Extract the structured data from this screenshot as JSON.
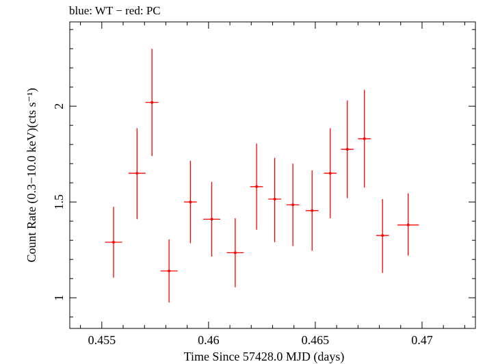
{
  "chart_data": {
    "type": "scatter",
    "title": "blue: WT − red: PC",
    "xlabel": "Time Since 57428.0 MJD (days)",
    "ylabel": "Count Rate (0.3−10.0 keV)(cts s⁻¹)",
    "xlim": [
      0.4535,
      0.4725
    ],
    "ylim": [
      0.84,
      2.44
    ],
    "x_ticks": [
      0.455,
      0.46,
      0.465,
      0.47
    ],
    "x_tick_labels": [
      "0.455",
      "0.46",
      "0.465",
      "0.47"
    ],
    "y_ticks": [
      1,
      1.5,
      2
    ],
    "y_tick_labels": [
      "1",
      "1.5",
      "2"
    ],
    "grid": false,
    "series": [
      {
        "name": "PC",
        "color": "#ff0000",
        "points": [
          {
            "x": 0.45555,
            "y": 1.29,
            "xerr": 0.0004,
            "ylo": 1.105,
            "yhi": 1.475
          },
          {
            "x": 0.45665,
            "y": 1.65,
            "xerr": 0.0004,
            "ylo": 1.41,
            "yhi": 1.885
          },
          {
            "x": 0.45735,
            "y": 2.02,
            "xerr": 0.0003,
            "ylo": 1.74,
            "yhi": 2.3
          },
          {
            "x": 0.45815,
            "y": 1.14,
            "xerr": 0.0004,
            "ylo": 0.975,
            "yhi": 1.305
          },
          {
            "x": 0.45915,
            "y": 1.5,
            "xerr": 0.0003,
            "ylo": 1.285,
            "yhi": 1.715
          },
          {
            "x": 0.46015,
            "y": 1.41,
            "xerr": 0.0004,
            "ylo": 1.215,
            "yhi": 1.605
          },
          {
            "x": 0.46125,
            "y": 1.235,
            "xerr": 0.0004,
            "ylo": 1.055,
            "yhi": 1.415
          },
          {
            "x": 0.46225,
            "y": 1.58,
            "xerr": 0.0003,
            "ylo": 1.355,
            "yhi": 1.805
          },
          {
            "x": 0.4631,
            "y": 1.515,
            "xerr": 0.0003,
            "ylo": 1.29,
            "yhi": 1.73
          },
          {
            "x": 0.46395,
            "y": 1.485,
            "xerr": 0.0003,
            "ylo": 1.27,
            "yhi": 1.7
          },
          {
            "x": 0.46485,
            "y": 1.455,
            "xerr": 0.0003,
            "ylo": 1.245,
            "yhi": 1.665
          },
          {
            "x": 0.4657,
            "y": 1.65,
            "xerr": 0.0003,
            "ylo": 1.415,
            "yhi": 1.885
          },
          {
            "x": 0.4665,
            "y": 1.775,
            "xerr": 0.0003,
            "ylo": 1.52,
            "yhi": 2.03
          },
          {
            "x": 0.4673,
            "y": 1.83,
            "xerr": 0.0003,
            "ylo": 1.575,
            "yhi": 2.085
          },
          {
            "x": 0.46815,
            "y": 1.325,
            "xerr": 0.0003,
            "ylo": 1.13,
            "yhi": 1.515
          },
          {
            "x": 0.46935,
            "y": 1.38,
            "xerr": 0.0005,
            "ylo": 1.22,
            "yhi": 1.545
          }
        ]
      }
    ]
  }
}
